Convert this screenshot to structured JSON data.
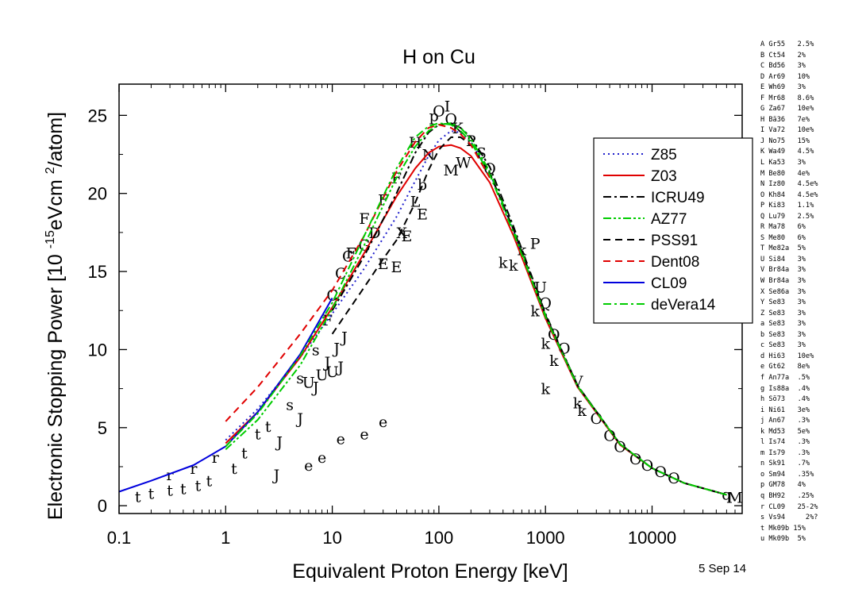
{
  "chart_data": {
    "type": "line",
    "title": "H on Cu",
    "xlabel": "Equivalent Proton Energy [keV]",
    "ylabel_parts": [
      "Electronic Stopping Power [10 ",
      "-15",
      "eVcm ",
      "2",
      "/atom]"
    ],
    "xscale": "log",
    "xlim": [
      0.1,
      70000
    ],
    "ylim": [
      -0.5,
      27
    ],
    "x_ticks": [
      0.1,
      1,
      10,
      100,
      1000,
      10000
    ],
    "x_tick_labels": [
      "0.1",
      "1",
      "10",
      "100",
      "1000",
      "10000"
    ],
    "y_ticks": [
      0,
      5,
      10,
      15,
      20,
      25
    ],
    "y_tick_labels": [
      "0",
      "5",
      "10",
      "15",
      "20",
      "25"
    ],
    "legend_position": "right",
    "series": [
      {
        "name": "Z85",
        "color": "#1f1fcc",
        "dash": "dotted",
        "x": [
          1,
          2,
          5,
          10,
          20,
          40,
          60,
          80,
          100,
          130,
          160,
          200,
          300,
          500,
          1000,
          2000,
          5000,
          10000,
          20000,
          50000
        ],
        "y": [
          4.2,
          6.2,
          9.5,
          12.3,
          15.2,
          18.5,
          20.8,
          22.4,
          23.4,
          24.0,
          23.9,
          23.3,
          21.3,
          17.6,
          12.0,
          7.6,
          3.9,
          2.4,
          1.45,
          0.7
        ]
      },
      {
        "name": "Z03",
        "color": "#e00000",
        "dash": "solid",
        "x": [
          1,
          2,
          5,
          10,
          20,
          40,
          60,
          80,
          100,
          130,
          160,
          200,
          300,
          500,
          1000,
          2000,
          5000,
          10000,
          20000,
          50000
        ],
        "y": [
          4.0,
          6.0,
          9.5,
          12.7,
          16.2,
          19.8,
          21.6,
          22.6,
          23.0,
          23.1,
          22.9,
          22.4,
          20.7,
          17.3,
          12.0,
          7.6,
          3.9,
          2.4,
          1.45,
          0.7
        ]
      },
      {
        "name": "ICRU49",
        "color": "#000000",
        "dash": "dashdot",
        "x": [
          10,
          20,
          40,
          60,
          80,
          100,
          130,
          160,
          200,
          300,
          500,
          1000,
          2000,
          5000,
          10000,
          20000,
          50000
        ],
        "y": [
          12.5,
          16.0,
          20.0,
          22.6,
          23.9,
          24.4,
          24.5,
          24.2,
          23.6,
          21.7,
          17.9,
          12.3,
          7.7,
          3.95,
          2.4,
          1.45,
          0.7
        ]
      },
      {
        "name": "AZ77",
        "color": "#00cc00",
        "dash": "dashdotdot",
        "x": [
          1,
          2,
          5,
          10,
          20,
          40,
          60,
          80,
          100,
          130,
          160,
          200,
          300,
          500,
          1000,
          2000,
          5000,
          10000,
          20000,
          50000
        ],
        "y": [
          3.6,
          5.5,
          9.0,
          12.6,
          16.7,
          21.0,
          23.0,
          24.0,
          24.4,
          24.5,
          24.2,
          23.5,
          21.4,
          17.7,
          12.2,
          7.7,
          3.95,
          2.4,
          1.45,
          0.7
        ]
      },
      {
        "name": "PSS91",
        "color": "#000000",
        "dash": "dashed",
        "x": [
          10,
          20,
          30,
          40,
          60,
          80,
          100,
          130,
          160,
          200,
          300,
          500,
          1000,
          2000,
          5000,
          10000,
          20000,
          50000
        ],
        "y": [
          11.0,
          14.0,
          15.8,
          17.0,
          19.4,
          21.5,
          22.8,
          23.6,
          23.6,
          23.1,
          21.3,
          17.7,
          12.2,
          7.7,
          3.95,
          2.4,
          1.45,
          0.7
        ]
      },
      {
        "name": "Dent08",
        "color": "#e00000",
        "dash": "dashed",
        "x": [
          1,
          2,
          5,
          10,
          20,
          40,
          60,
          80,
          100,
          130,
          160,
          200,
          300
        ],
        "y": [
          5.4,
          7.6,
          11.0,
          13.8,
          17.3,
          21.4,
          23.3,
          24.2,
          24.4,
          24.2,
          23.8,
          23.1,
          21.0
        ]
      },
      {
        "name": "CL09",
        "color": "#0000dd",
        "dash": "solid",
        "x": [
          0.1,
          0.2,
          0.5,
          1,
          2,
          5,
          10
        ],
        "y": [
          0.9,
          1.6,
          2.6,
          3.8,
          6.0,
          9.7,
          13.3
        ]
      },
      {
        "name": "deVera14",
        "color": "#00cc00",
        "dash": "dashdot",
        "x": [
          1,
          2,
          5,
          10,
          20,
          40,
          60,
          80,
          100,
          130,
          160,
          200,
          300,
          500,
          1000,
          2000,
          5000,
          10000,
          20000,
          50000
        ],
        "y": [
          3.8,
          5.9,
          9.6,
          13.0,
          17.3,
          21.6,
          23.6,
          24.3,
          24.5,
          24.4,
          24.0,
          23.3,
          21.2,
          17.5,
          12.1,
          7.65,
          3.95,
          2.4,
          1.45,
          0.7
        ]
      }
    ],
    "data_marks": [
      {
        "label": "t",
        "x": 0.15,
        "y": 0.6
      },
      {
        "label": "t",
        "x": 0.2,
        "y": 0.8
      },
      {
        "label": "t",
        "x": 0.3,
        "y": 1.0
      },
      {
        "label": "t",
        "x": 0.4,
        "y": 1.1
      },
      {
        "label": "t",
        "x": 0.55,
        "y": 1.3
      },
      {
        "label": "t",
        "x": 0.7,
        "y": 1.6
      },
      {
        "label": "t",
        "x": 1.2,
        "y": 2.4
      },
      {
        "label": "t",
        "x": 1.5,
        "y": 3.4
      },
      {
        "label": "t",
        "x": 2.0,
        "y": 4.6
      },
      {
        "label": "t",
        "x": 2.5,
        "y": 5.1
      },
      {
        "label": "r",
        "x": 0.3,
        "y": 2.0
      },
      {
        "label": "r",
        "x": 0.5,
        "y": 2.4
      },
      {
        "label": "r",
        "x": 0.8,
        "y": 3.1
      },
      {
        "label": "J",
        "x": 3.2,
        "y": 4.1
      },
      {
        "label": "J",
        "x": 3.0,
        "y": 2.0
      },
      {
        "label": "J",
        "x": 5.0,
        "y": 5.6
      },
      {
        "label": "J",
        "x": 7.0,
        "y": 7.6
      },
      {
        "label": "J",
        "x": 9.0,
        "y": 9.2
      },
      {
        "label": "J",
        "x": 11,
        "y": 10.1
      },
      {
        "label": "J",
        "x": 12,
        "y": 8.9
      },
      {
        "label": "J",
        "x": 13,
        "y": 10.8
      },
      {
        "label": "U",
        "x": 6.0,
        "y": 7.9
      },
      {
        "label": "U",
        "x": 8.0,
        "y": 8.4
      },
      {
        "label": "U",
        "x": 10.0,
        "y": 8.6
      },
      {
        "label": "s",
        "x": 4.0,
        "y": 6.5
      },
      {
        "label": "s",
        "x": 5.0,
        "y": 8.2
      },
      {
        "label": "s",
        "x": 7.0,
        "y": 10.0
      },
      {
        "label": "e",
        "x": 6,
        "y": 2.6
      },
      {
        "label": "e",
        "x": 8,
        "y": 3.1
      },
      {
        "label": "e",
        "x": 12,
        "y": 4.3
      },
      {
        "label": "e",
        "x": 20,
        "y": 4.6
      },
      {
        "label": "e",
        "x": 30,
        "y": 5.4
      },
      {
        "label": "C",
        "x": 10,
        "y": 13.5
      },
      {
        "label": "C",
        "x": 12,
        "y": 14.9
      },
      {
        "label": "C",
        "x": 14,
        "y": 16.0
      },
      {
        "label": "F",
        "x": 9,
        "y": 11.9
      },
      {
        "label": "F",
        "x": 15,
        "y": 16.2
      },
      {
        "label": "F",
        "x": 20,
        "y": 18.4
      },
      {
        "label": "F",
        "x": 30,
        "y": 19.6
      },
      {
        "label": "F",
        "x": 40,
        "y": 21.0
      },
      {
        "label": "E",
        "x": 30,
        "y": 15.5
      },
      {
        "label": "E",
        "x": 40,
        "y": 15.3
      },
      {
        "label": "E",
        "x": 50,
        "y": 17.3
      },
      {
        "label": "E",
        "x": 70,
        "y": 18.7
      },
      {
        "label": "G",
        "x": 20,
        "y": 16.7
      },
      {
        "label": "D",
        "x": 25,
        "y": 17.5
      },
      {
        "label": "H",
        "x": 60,
        "y": 23.3
      },
      {
        "label": "X",
        "x": 45,
        "y": 17.5
      },
      {
        "label": "L",
        "x": 60,
        "y": 19.5
      },
      {
        "label": "b",
        "x": 70,
        "y": 20.6
      },
      {
        "label": "p",
        "x": 90,
        "y": 25.0
      },
      {
        "label": "O",
        "x": 100,
        "y": 25.3
      },
      {
        "label": "I",
        "x": 120,
        "y": 25.6
      },
      {
        "label": "Q",
        "x": 130,
        "y": 24.8
      },
      {
        "label": "K",
        "x": 150,
        "y": 24.2
      },
      {
        "label": "P",
        "x": 200,
        "y": 23.4
      },
      {
        "label": "W",
        "x": 170,
        "y": 22.0
      },
      {
        "label": "S",
        "x": 250,
        "y": 22.6
      },
      {
        "label": "M",
        "x": 130,
        "y": 21.5
      },
      {
        "label": "N",
        "x": 80,
        "y": 22.5
      },
      {
        "label": "O",
        "x": 300,
        "y": 21.6
      },
      {
        "label": "k",
        "x": 400,
        "y": 15.6
      },
      {
        "label": "k",
        "x": 500,
        "y": 15.4
      },
      {
        "label": "k",
        "x": 600,
        "y": 16.4
      },
      {
        "label": "k",
        "x": 800,
        "y": 12.5
      },
      {
        "label": "k",
        "x": 1000,
        "y": 10.4
      },
      {
        "label": "k",
        "x": 1200,
        "y": 9.3
      },
      {
        "label": "k",
        "x": 1000,
        "y": 7.5
      },
      {
        "label": "k",
        "x": 2000,
        "y": 6.6
      },
      {
        "label": "k",
        "x": 2200,
        "y": 6.1
      },
      {
        "label": "P",
        "x": 800,
        "y": 16.8
      },
      {
        "label": "U",
        "x": 900,
        "y": 14.0
      },
      {
        "label": "Q",
        "x": 1000,
        "y": 13.0
      },
      {
        "label": "O",
        "x": 1200,
        "y": 11.0
      },
      {
        "label": "O",
        "x": 1500,
        "y": 10.1
      },
      {
        "label": "V",
        "x": 2000,
        "y": 8.0
      },
      {
        "label": "O",
        "x": 3000,
        "y": 5.6
      },
      {
        "label": "O",
        "x": 4000,
        "y": 4.5
      },
      {
        "label": "O",
        "x": 5000,
        "y": 3.8
      },
      {
        "label": "O",
        "x": 7000,
        "y": 3.0
      },
      {
        "label": "O",
        "x": 9000,
        "y": 2.6
      },
      {
        "label": "O",
        "x": 12000,
        "y": 2.2
      },
      {
        "label": "O",
        "x": 16000,
        "y": 1.8
      },
      {
        "label": "q",
        "x": 50000,
        "y": 0.75
      },
      {
        "label": "M",
        "x": 60000,
        "y": 0.55
      }
    ]
  },
  "references": [
    "A Gr55   2.5%",
    "B Ct54   2%",
    "C Bd56   3%",
    "D Ar69   10%",
    "E Wh69   3%",
    "F Mr68   8.6%",
    "G Za67   10e%",
    "H Bä36   7e%",
    "I Va72   10e%",
    "J No75   15%",
    "K Wa49   4.5%",
    "L Ka53   3%",
    "M Be80   4e%",
    "N Iz80   4.5e%",
    "O Kh84   4.5e%",
    "P Ki83   1.1%",
    "Q Lu79   2.5%",
    "R Ma78   6%",
    "S Me80   6%",
    "T Me82a  5%",
    "U Si84   3%",
    "V Br84a  3%",
    "W Br84a  3%",
    "X Se86a  3%",
    "Y Se83   3%",
    "Z Se83   3%",
    "a Se83   3%",
    "b Se83   3%",
    "c Se83   3%",
    "d Hi63   10e%",
    "e Gt62   8e%",
    "f An77a  .5%",
    "g Is88a  .4%",
    "h Sö73   .4%",
    "i Ni61   3e%",
    "j An67   .3%",
    "k Md53   5e%",
    "l Is74   .3%",
    "m Is79   .3%",
    "n Sk91   .7%",
    "o Sm94   .35%",
    "p GM78   4%",
    "q BH92   .25%",
    "r CL09   25-2%",
    "s Vs94     2%?",
    "t Mk09b 15%",
    "u Mk09b  5%"
  ],
  "date_stamp": "5 Sep 14"
}
